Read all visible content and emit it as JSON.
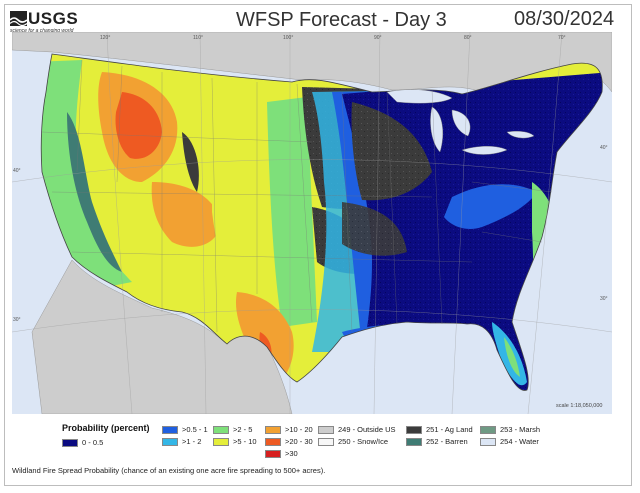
{
  "header": {
    "logo_text": "USGS",
    "logo_tagline": "science for a changing world",
    "title": "WFSP Forecast - Day 3",
    "date": "08/30/2024"
  },
  "map": {
    "longitude_labels": [
      "120°",
      "110°",
      "100°",
      "90°",
      "80°",
      "70°"
    ],
    "latitude_labels": [
      "40°",
      "40°",
      "30°",
      "30°"
    ],
    "scale_text": "scale 1:18,050,000"
  },
  "legend": {
    "title": "Probability (percent)",
    "items": [
      {
        "label": "0 - 0.5",
        "color": "#0b0b80"
      },
      {
        "label": ">0.5 - 1",
        "color": "#1f5fe0"
      },
      {
        "label": ">1 - 2",
        "color": "#33b6e6"
      },
      {
        "label": ">2 - 5",
        "color": "#7ee07a"
      },
      {
        "label": ">5 - 10",
        "color": "#e4ee3a"
      },
      {
        "label": ">10 - 20",
        "color": "#f2a132"
      },
      {
        "label": ">20 - 30",
        "color": "#ee5a22"
      },
      {
        "label": ">30",
        "color": "#d62020"
      },
      {
        "label": "249 - Outside US",
        "color": "#cdcdcd"
      },
      {
        "label": "250 - Snow/Ice",
        "color": "#f7f7f7"
      },
      {
        "label": "251 - Ag Land",
        "color": "#3b3b3b"
      },
      {
        "label": "252 - Barren",
        "color": "#3f7c74"
      },
      {
        "label": "253 - Marsh",
        "color": "#6f9a84"
      },
      {
        "label": "254 - Water",
        "color": "#dce6f5"
      }
    ]
  },
  "footnote": "Wildland Fire Spread Probability (chance of an existing one acre fire spreading to 500+ acres)."
}
